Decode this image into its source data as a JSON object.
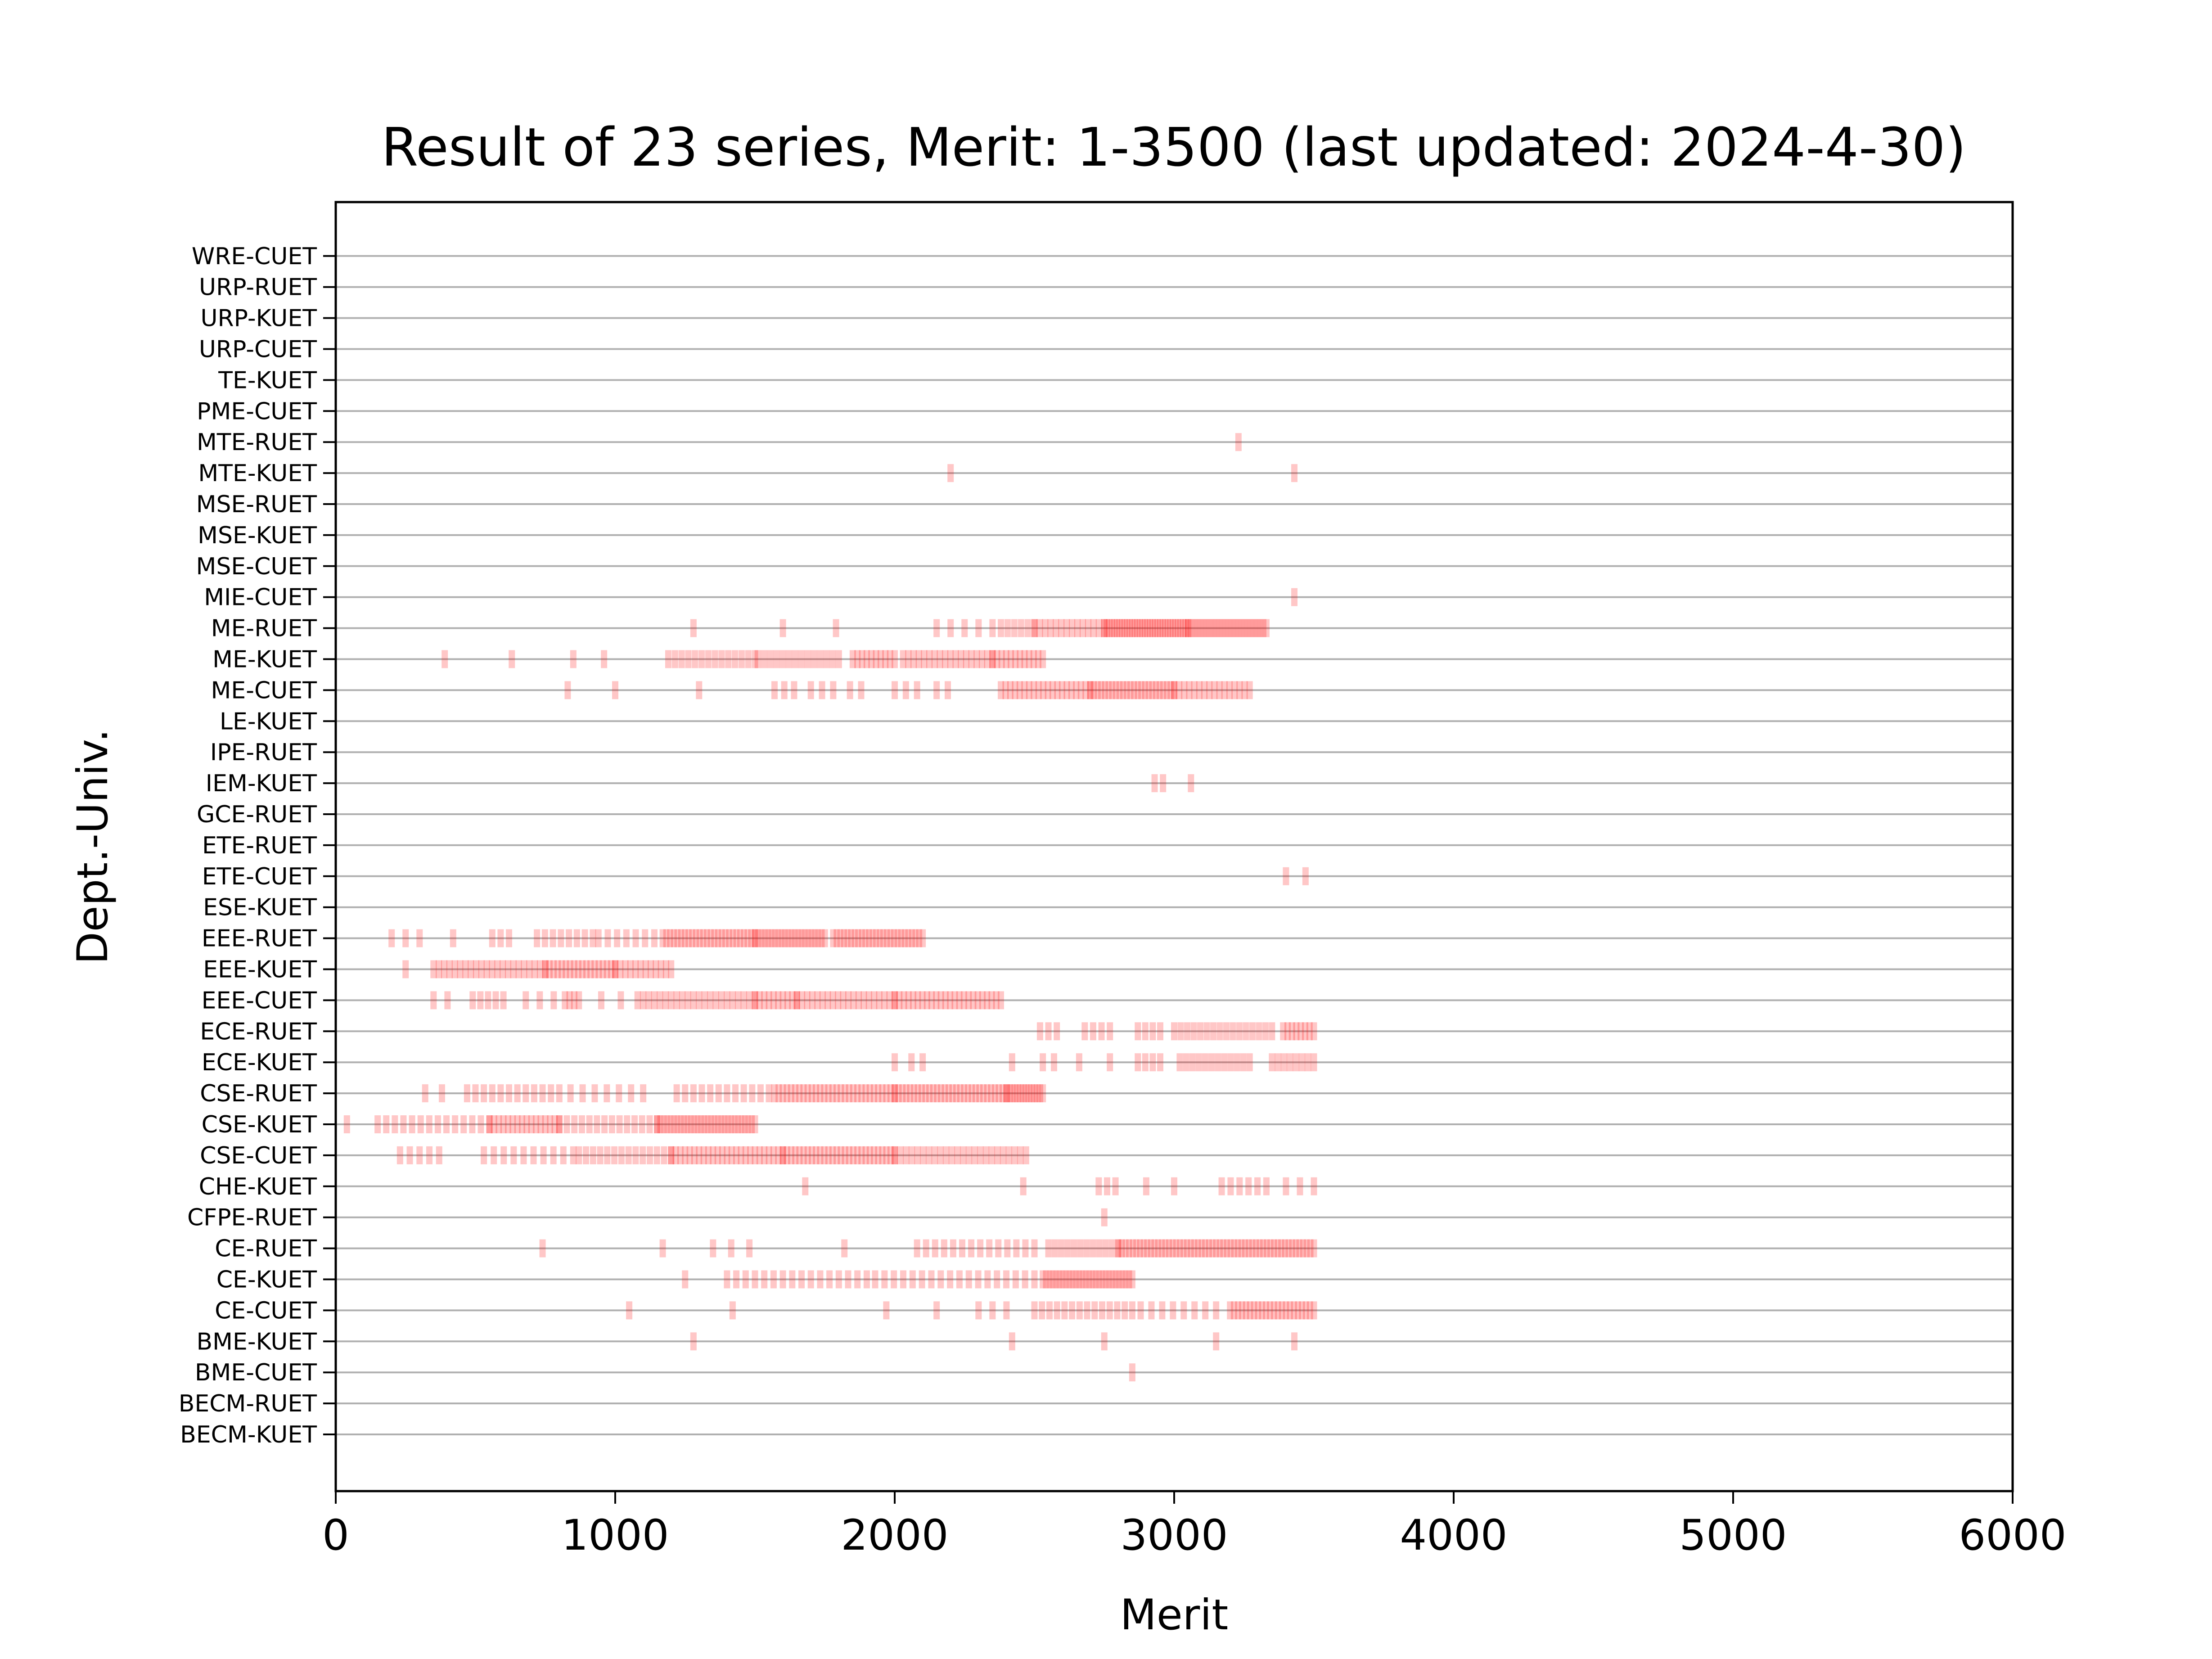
{
  "chart_data": {
    "type": "scatter",
    "title": "Result of 23 series, Merit: 1-3500 (last updated: 2024-4-30)",
    "xlabel": "Merit",
    "ylabel": "Dept.-Univ.",
    "xlim": [
      0,
      6000
    ],
    "xticks": [
      0,
      1000,
      2000,
      3000,
      4000,
      5000,
      6000
    ],
    "grid": "horizontal",
    "marker": "vertical-tick",
    "marker_color": "#ff0000",
    "grid_color": "#b0b0b0",
    "categories": [
      "BECM-KUET",
      "BECM-RUET",
      "BME-CUET",
      "BME-KUET",
      "CE-CUET",
      "CE-KUET",
      "CE-RUET",
      "CFPE-RUET",
      "CHE-KUET",
      "CSE-CUET",
      "CSE-KUET",
      "CSE-RUET",
      "ECE-KUET",
      "ECE-RUET",
      "EEE-CUET",
      "EEE-KUET",
      "EEE-RUET",
      "ESE-KUET",
      "ETE-CUET",
      "ETE-RUET",
      "GCE-RUET",
      "IEM-KUET",
      "IPE-RUET",
      "LE-KUET",
      "ME-CUET",
      "ME-KUET",
      "ME-RUET",
      "MIE-CUET",
      "MSE-CUET",
      "MSE-KUET",
      "MSE-RUET",
      "MTE-KUET",
      "MTE-RUET",
      "PME-CUET",
      "TE-KUET",
      "URP-CUET",
      "URP-KUET",
      "URP-RUET",
      "WRE-CUET"
    ],
    "series": [
      {
        "category": "BECM-KUET",
        "clusters": []
      },
      {
        "category": "BECM-RUET",
        "clusters": []
      },
      {
        "category": "BME-CUET",
        "clusters": [
          [
            2850,
            2850,
            1
          ]
        ]
      },
      {
        "category": "BME-KUET",
        "clusters": [
          [
            1280,
            1280,
            1
          ],
          [
            2420,
            2420,
            1
          ],
          [
            2750,
            2750,
            1
          ],
          [
            3150,
            3150,
            1
          ],
          [
            3430,
            3430,
            1
          ]
        ]
      },
      {
        "category": "CE-CUET",
        "clusters": [
          [
            1050,
            1050,
            1
          ],
          [
            1420,
            1420,
            1
          ],
          [
            1970,
            1970,
            1
          ],
          [
            2150,
            2150,
            1
          ],
          [
            2300,
            2400,
            3
          ],
          [
            2500,
            2850,
            14
          ],
          [
            2880,
            3150,
            8
          ],
          [
            3200,
            3500,
            22
          ]
        ]
      },
      {
        "category": "CE-KUET",
        "clusters": [
          [
            1250,
            1250,
            1
          ],
          [
            1400,
            1900,
            16
          ],
          [
            1930,
            2500,
            18
          ],
          [
            2530,
            2850,
            28
          ]
        ]
      },
      {
        "category": "CE-RUET",
        "clusters": [
          [
            740,
            740,
            1
          ],
          [
            1170,
            1170,
            1
          ],
          [
            1350,
            1480,
            3
          ],
          [
            1820,
            1820,
            1
          ],
          [
            2080,
            2500,
            14
          ],
          [
            2550,
            2800,
            12
          ],
          [
            2800,
            3500,
            55
          ]
        ]
      },
      {
        "category": "CFPE-RUET",
        "clusters": [
          [
            2750,
            2750,
            1
          ]
        ]
      },
      {
        "category": "CHE-KUET",
        "clusters": [
          [
            1680,
            1680,
            1
          ],
          [
            2460,
            2460,
            1
          ],
          [
            2730,
            2790,
            3
          ],
          [
            2900,
            2900,
            1
          ],
          [
            3000,
            3000,
            1
          ],
          [
            3170,
            3330,
            6
          ],
          [
            3400,
            3500,
            3
          ]
        ]
      },
      {
        "category": "CSE-CUET",
        "clusters": [
          [
            230,
            370,
            5
          ],
          [
            530,
            850,
            10
          ],
          [
            870,
            1200,
            14
          ],
          [
            1200,
            1600,
            25
          ],
          [
            1600,
            2000,
            28
          ],
          [
            2000,
            2470,
            24
          ]
        ]
      },
      {
        "category": "CSE-KUET",
        "clusters": [
          [
            40,
            40,
            1
          ],
          [
            150,
            550,
            14
          ],
          [
            550,
            800,
            16
          ],
          [
            800,
            1150,
            14
          ],
          [
            1150,
            1500,
            30
          ]
        ]
      },
      {
        "category": "CSE-RUET",
        "clusters": [
          [
            320,
            380,
            2
          ],
          [
            470,
            800,
            12
          ],
          [
            840,
            1100,
            7
          ],
          [
            1220,
            1550,
            12
          ],
          [
            1570,
            2000,
            30
          ],
          [
            2000,
            2400,
            30
          ],
          [
            2400,
            2530,
            14
          ]
        ]
      },
      {
        "category": "ECE-KUET",
        "clusters": [
          [
            2000,
            2000,
            1
          ],
          [
            2060,
            2100,
            2
          ],
          [
            2420,
            2420,
            1
          ],
          [
            2530,
            2570,
            2
          ],
          [
            2660,
            2660,
            1
          ],
          [
            2770,
            2770,
            1
          ],
          [
            2870,
            2950,
            4
          ],
          [
            3020,
            3270,
            12
          ],
          [
            3350,
            3500,
            8
          ]
        ]
      },
      {
        "category": "ECE-RUET",
        "clusters": [
          [
            2520,
            2580,
            3
          ],
          [
            2680,
            2770,
            4
          ],
          [
            2870,
            2950,
            4
          ],
          [
            3000,
            3350,
            16
          ],
          [
            3390,
            3500,
            8
          ]
        ]
      },
      {
        "category": "EEE-CUET",
        "clusters": [
          [
            350,
            400,
            2
          ],
          [
            490,
            600,
            5
          ],
          [
            680,
            780,
            3
          ],
          [
            820,
            870,
            4
          ],
          [
            950,
            1020,
            2
          ],
          [
            1080,
            1500,
            22
          ],
          [
            1500,
            1650,
            10
          ],
          [
            1650,
            2000,
            20
          ],
          [
            2000,
            2380,
            24
          ]
        ]
      },
      {
        "category": "EEE-KUET",
        "clusters": [
          [
            250,
            250,
            1
          ],
          [
            350,
            750,
            22
          ],
          [
            750,
            1000,
            18
          ],
          [
            1000,
            1200,
            12
          ]
        ]
      },
      {
        "category": "EEE-RUET",
        "clusters": [
          [
            200,
            300,
            3
          ],
          [
            420,
            420,
            1
          ],
          [
            560,
            620,
            3
          ],
          [
            720,
            920,
            8
          ],
          [
            940,
            1140,
            7
          ],
          [
            1170,
            1500,
            26
          ],
          [
            1500,
            1750,
            22
          ],
          [
            1780,
            2100,
            26
          ]
        ]
      },
      {
        "category": "ESE-KUET",
        "clusters": []
      },
      {
        "category": "ETE-CUET",
        "clusters": [
          [
            3400,
            3400,
            1
          ],
          [
            3470,
            3470,
            1
          ]
        ]
      },
      {
        "category": "ETE-RUET",
        "clusters": []
      },
      {
        "category": "GCE-RUET",
        "clusters": []
      },
      {
        "category": "IEM-KUET",
        "clusters": [
          [
            2930,
            2960,
            2
          ],
          [
            3060,
            3060,
            1
          ]
        ]
      },
      {
        "category": "IPE-RUET",
        "clusters": []
      },
      {
        "category": "LE-KUET",
        "clusters": []
      },
      {
        "category": "ME-CUET",
        "clusters": [
          [
            830,
            830,
            1
          ],
          [
            1000,
            1000,
            1
          ],
          [
            1300,
            1300,
            1
          ],
          [
            1570,
            1640,
            3
          ],
          [
            1700,
            1780,
            3
          ],
          [
            1840,
            1880,
            2
          ],
          [
            2000,
            2080,
            3
          ],
          [
            2150,
            2190,
            2
          ],
          [
            2380,
            2700,
            20
          ],
          [
            2700,
            3000,
            24
          ],
          [
            3000,
            3270,
            16
          ]
        ]
      },
      {
        "category": "ME-KUET",
        "clusters": [
          [
            390,
            390,
            1
          ],
          [
            630,
            630,
            1
          ],
          [
            850,
            850,
            1
          ],
          [
            960,
            960,
            1
          ],
          [
            1190,
            1500,
            14
          ],
          [
            1510,
            1800,
            14
          ],
          [
            1850,
            2000,
            10
          ],
          [
            2030,
            2350,
            18
          ],
          [
            2350,
            2530,
            12
          ]
        ]
      },
      {
        "category": "ME-RUET",
        "clusters": [
          [
            1280,
            1280,
            1
          ],
          [
            1600,
            1600,
            1
          ],
          [
            1790,
            1790,
            1
          ],
          [
            2150,
            2200,
            2
          ],
          [
            2250,
            2350,
            3
          ],
          [
            2380,
            2500,
            6
          ],
          [
            2500,
            2750,
            14
          ],
          [
            2750,
            3050,
            34
          ],
          [
            3050,
            3330,
            26
          ]
        ]
      },
      {
        "category": "MIE-CUET",
        "clusters": [
          [
            3430,
            3430,
            1
          ]
        ]
      },
      {
        "category": "MSE-CUET",
        "clusters": []
      },
      {
        "category": "MSE-KUET",
        "clusters": []
      },
      {
        "category": "MSE-RUET",
        "clusters": []
      },
      {
        "category": "MTE-KUET",
        "clusters": [
          [
            2200,
            2200,
            1
          ],
          [
            3430,
            3430,
            1
          ]
        ]
      },
      {
        "category": "MTE-RUET",
        "clusters": [
          [
            3230,
            3230,
            1
          ]
        ]
      },
      {
        "category": "PME-CUET",
        "clusters": []
      },
      {
        "category": "TE-KUET",
        "clusters": []
      },
      {
        "category": "URP-CUET",
        "clusters": []
      },
      {
        "category": "URP-KUET",
        "clusters": []
      },
      {
        "category": "URP-RUET",
        "clusters": []
      },
      {
        "category": "WRE-CUET",
        "clusters": []
      }
    ]
  }
}
